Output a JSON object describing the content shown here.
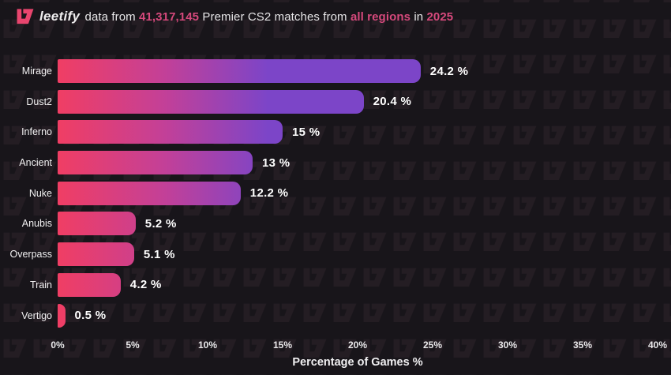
{
  "header": {
    "brand": "leetify",
    "text_1": " data from ",
    "match_count": "41,317,145",
    "text_2": " Premier CS2 matches from ",
    "regions": "all regions",
    "text_3": " in ",
    "year": "2025"
  },
  "colors": {
    "background": "#18151a",
    "pattern_glyph": "#241d23",
    "logo_pink": "#e8456e",
    "accent_pink": "#d6497c",
    "text": "#eeedee",
    "bar_gradient_start": "#f03e64",
    "bar_gradient_mid": "#c44097",
    "bar_gradient_end": "#7c45c8"
  },
  "chart_data": {
    "type": "bar",
    "orientation": "horizontal",
    "title": "leetify data from 41,317,145 Premier CS2 matches from all regions in 2025",
    "categories": [
      "Mirage",
      "Dust2",
      "Inferno",
      "Ancient",
      "Nuke",
      "Anubis",
      "Overpass",
      "Train",
      "Vertigo"
    ],
    "values": [
      24.2,
      20.4,
      15,
      13,
      12.2,
      5.2,
      5.1,
      4.2,
      0.5
    ],
    "value_labels": [
      "24.2 %",
      "20.4 %",
      "15 %",
      "13 %",
      "12.2 %",
      "5.2 %",
      "5.1 %",
      "4.2 %",
      "0.5 %"
    ],
    "xlabel": "Percentage of Games %",
    "ylabel": "",
    "xlim": [
      0,
      40
    ],
    "x_ticks": [
      "0%",
      "5%",
      "10%",
      "15%",
      "20%",
      "25%",
      "30%",
      "35%",
      "40%"
    ],
    "gradient_span_pct": 14,
    "grid": false,
    "legend": "none"
  }
}
